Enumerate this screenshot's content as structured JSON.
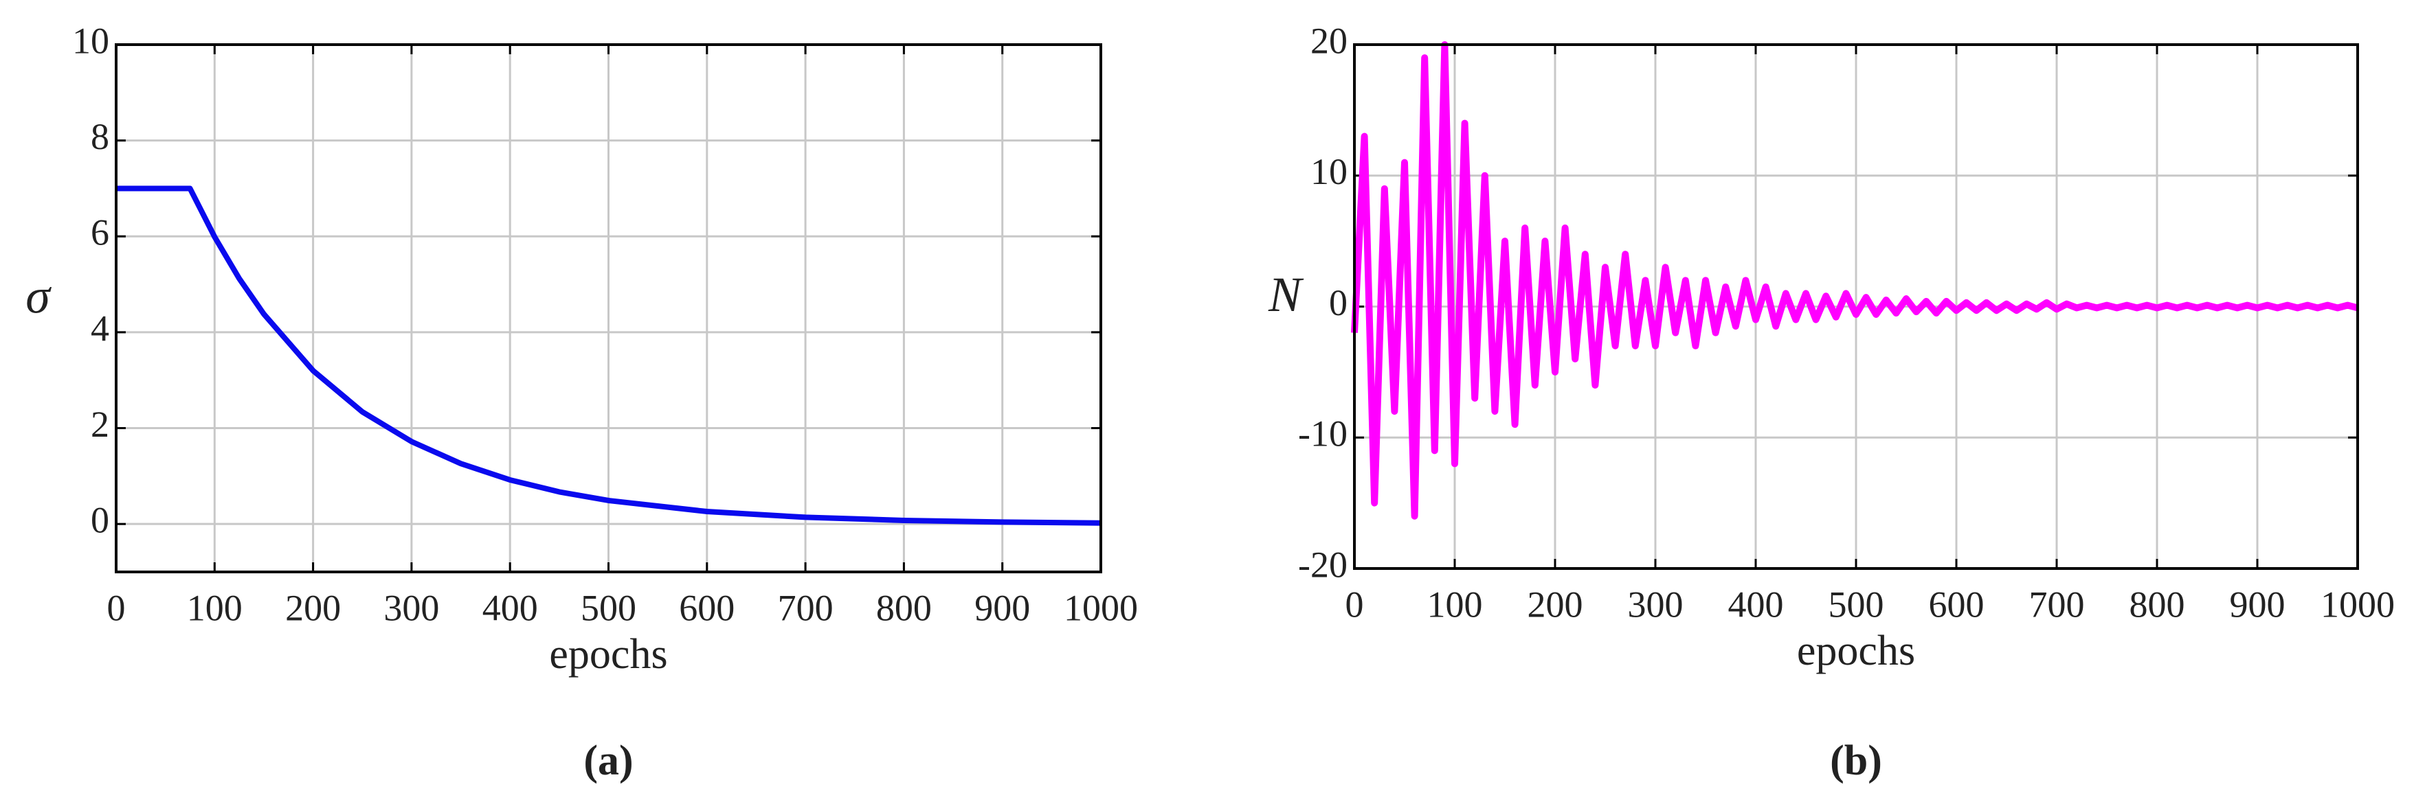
{
  "chart_data": [
    {
      "type": "line",
      "caption": "(a)",
      "x_label": "epochs",
      "y_label": "σ",
      "x": [
        0,
        75,
        100,
        125,
        150,
        200,
        250,
        300,
        350,
        400,
        450,
        500,
        600,
        700,
        800,
        900,
        1000
      ],
      "series": [
        {
          "name": "σ",
          "color": "#0a0aee",
          "values": [
            7,
            7,
            5.99,
            5.12,
            4.38,
            3.2,
            2.34,
            1.72,
            1.26,
            0.92,
            0.67,
            0.49,
            0.26,
            0.14,
            0.075,
            0.04,
            0.02
          ]
        }
      ],
      "xlim": [
        0,
        1000
      ],
      "xticks": [
        0,
        100,
        200,
        300,
        400,
        500,
        600,
        700,
        800,
        900,
        1000
      ],
      "ylim": [
        -1,
        10
      ],
      "yticks": [
        0,
        2,
        4,
        6,
        8,
        10
      ],
      "grid": true
    },
    {
      "type": "line",
      "caption": "(b)",
      "x_label": "epochs",
      "y_label": "N",
      "x": [
        0,
        10,
        20,
        30,
        40,
        50,
        60,
        70,
        80,
        90,
        100,
        110,
        120,
        130,
        140,
        150,
        160,
        170,
        180,
        190,
        200,
        210,
        220,
        230,
        240,
        250,
        260,
        270,
        280,
        290,
        300,
        310,
        320,
        330,
        340,
        350,
        360,
        370,
        380,
        390,
        400,
        410,
        420,
        430,
        440,
        450,
        460,
        470,
        480,
        490,
        500,
        510,
        520,
        530,
        540,
        550,
        560,
        570,
        580,
        590,
        600,
        610,
        620,
        630,
        640,
        650,
        660,
        670,
        680,
        690,
        700,
        710,
        720,
        730,
        740,
        750,
        760,
        770,
        780,
        790,
        800,
        810,
        820,
        830,
        840,
        850,
        860,
        870,
        880,
        890,
        900,
        910,
        920,
        930,
        940,
        950,
        960,
        970,
        980,
        990,
        1000
      ],
      "series": [
        {
          "name": "N",
          "color": "#ff00ff",
          "values": [
            -2,
            13,
            -15,
            9,
            -8,
            11,
            -16,
            19,
            -11,
            20,
            -12,
            14,
            -7,
            10,
            -8,
            5,
            -9,
            6,
            -6,
            5,
            -5,
            6,
            -4,
            4,
            -6,
            3,
            -3,
            4,
            -3,
            2,
            -3,
            3,
            -2,
            2,
            -3,
            2,
            -2,
            1.5,
            -1.5,
            2,
            -1,
            1.5,
            -1.5,
            1,
            -1,
            1,
            -1,
            0.8,
            -0.8,
            1,
            -0.6,
            0.7,
            -0.6,
            0.5,
            -0.5,
            0.6,
            -0.4,
            0.4,
            -0.5,
            0.4,
            -0.3,
            0.3,
            -0.3,
            0.3,
            -0.3,
            0.2,
            -0.3,
            0.2,
            -0.2,
            0.3,
            -0.2,
            0.2,
            -0.1,
            0.1,
            -0.1,
            0.1,
            -0.1,
            0.1,
            -0.1,
            0.1,
            -0.1,
            0.1,
            -0.1,
            0.1,
            -0.1,
            0.1,
            -0.1,
            0.1,
            -0.1,
            0.1,
            -0.1,
            0.1,
            -0.1,
            0.1,
            -0.1,
            0.1,
            -0.1,
            0.1,
            -0.1,
            0.1,
            -0.1
          ]
        }
      ],
      "xlim": [
        0,
        1000
      ],
      "xticks": [
        0,
        100,
        200,
        300,
        400,
        500,
        600,
        700,
        800,
        900,
        1000
      ],
      "ylim": [
        -20,
        20
      ],
      "yticks": [
        -20,
        -10,
        0,
        10,
        20
      ],
      "grid": true
    }
  ]
}
